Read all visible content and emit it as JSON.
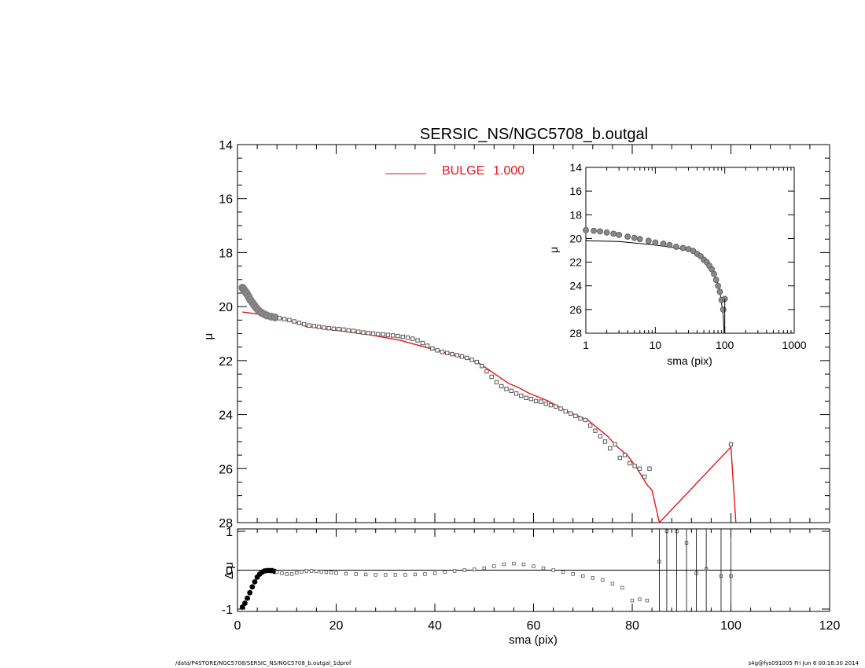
{
  "chart_data": [
    {
      "type": "scatter",
      "title": "SERSIC_NS/NGC5708_b.outgal",
      "xlabel": "",
      "ylabel": "μ",
      "xlim": [
        0,
        120
      ],
      "ylim": [
        28,
        14
      ],
      "yticks": [
        "14",
        "16",
        "18",
        "20",
        "22",
        "24",
        "26",
        "28"
      ],
      "legend": {
        "label": "BULGE",
        "value": "1.000",
        "color": "#e8141a",
        "placement": "top-center"
      },
      "data_points": {
        "x": [
          1.0,
          1.2,
          1.4,
          1.6,
          1.8,
          2.0,
          2.3,
          2.6,
          3.0,
          3.4,
          3.8,
          4.3,
          4.8,
          5.4,
          6.0,
          6.8,
          7.6,
          8.5,
          9.5,
          10.5,
          11.5,
          12.5,
          13.5,
          14.5,
          15.5,
          16.5,
          17.5,
          18.5,
          19.5,
          20.5,
          21.5,
          22.5,
          23.5,
          24.5,
          25.5,
          26.5,
          27.5,
          28.5,
          29.5,
          30.5,
          31.5,
          32.5,
          33.5,
          34.5,
          35.5,
          36.5,
          37.5,
          38.5,
          39.5,
          40.5,
          41.5,
          42.5,
          43.5,
          44.5,
          45.5,
          46.5,
          47.5,
          48.5,
          49.5,
          50.5,
          51.5,
          52.5,
          53.5,
          54.5,
          55.5,
          56.5,
          57.5,
          58.5,
          59.5,
          60.5,
          61.5,
          62.5,
          63.5,
          64.5,
          65.5,
          66.5,
          67.5,
          68.5,
          69.5,
          70.5,
          71.5,
          72.5,
          73.5,
          74.5,
          75.5,
          76.5,
          77.5,
          78.5,
          79.5,
          80.5,
          81.5,
          82.5,
          83.5,
          100.0
        ],
        "y": [
          19.3,
          19.35,
          19.4,
          19.45,
          19.5,
          19.55,
          19.65,
          19.75,
          19.85,
          19.95,
          20.05,
          20.15,
          20.22,
          20.28,
          20.33,
          20.37,
          20.4,
          20.43,
          20.46,
          20.5,
          20.55,
          20.6,
          20.65,
          20.7,
          20.72,
          20.75,
          20.78,
          20.8,
          20.82,
          20.83,
          20.85,
          20.88,
          20.9,
          20.93,
          20.96,
          20.98,
          21.0,
          21.02,
          21.03,
          21.05,
          21.07,
          21.09,
          21.12,
          21.15,
          21.19,
          21.25,
          21.35,
          21.45,
          21.55,
          21.62,
          21.68,
          21.72,
          21.76,
          21.8,
          21.85,
          21.9,
          21.97,
          22.05,
          22.2,
          22.4,
          22.6,
          22.8,
          22.95,
          23.05,
          23.12,
          23.22,
          23.3,
          23.38,
          23.42,
          23.5,
          23.52,
          23.6,
          23.65,
          23.7,
          23.78,
          23.88,
          23.96,
          24.05,
          24.15,
          24.2,
          24.4,
          24.6,
          24.8,
          25.0,
          25.25,
          25.1,
          25.6,
          25.5,
          25.8,
          25.9,
          26.0,
          26.3,
          26.0,
          25.1
        ]
      },
      "model_line": {
        "name": "BULGE",
        "x": [
          1,
          3,
          5,
          7,
          9,
          11,
          13,
          14,
          15,
          17,
          19,
          21,
          23,
          25,
          27,
          29,
          31,
          33,
          35,
          37,
          39,
          41,
          43,
          45,
          47,
          49,
          51,
          53,
          55,
          57,
          59,
          61,
          63,
          65,
          67,
          69,
          71,
          73,
          75,
          77,
          79,
          81,
          83,
          84,
          85.5,
          100,
          101
        ],
        "y": [
          20.2,
          20.25,
          20.3,
          20.4,
          20.45,
          20.55,
          20.65,
          20.75,
          20.75,
          20.8,
          20.85,
          20.9,
          20.95,
          21.0,
          21.05,
          21.12,
          21.18,
          21.25,
          21.35,
          21.45,
          21.55,
          21.65,
          21.75,
          21.85,
          21.95,
          22.1,
          22.35,
          22.6,
          22.85,
          23.0,
          23.2,
          23.35,
          23.5,
          23.7,
          23.9,
          24.05,
          24.2,
          24.5,
          24.8,
          25.2,
          25.5,
          26.0,
          26.6,
          26.8,
          28.0,
          25.2,
          28.0
        ]
      }
    },
    {
      "type": "scatter",
      "title": "",
      "xlabel": "sma (pix)",
      "ylabel": "μ",
      "x_scale": "log",
      "xlim": [
        1,
        1000
      ],
      "ylim": [
        28,
        14
      ],
      "xticks": [
        "1",
        "10",
        "100",
        "1000"
      ],
      "yticks": [
        "14",
        "16",
        "18",
        "20",
        "22",
        "24",
        "26",
        "28"
      ],
      "data_points": {
        "x": [
          1.0,
          1.3,
          1.6,
          2.0,
          2.5,
          3.0,
          4.0,
          5.0,
          6.0,
          8.0,
          10,
          13,
          16,
          20,
          25,
          30,
          35,
          40,
          45,
          50,
          55,
          60,
          65,
          70,
          75,
          80,
          85,
          90,
          95,
          100
        ],
        "y": [
          19.3,
          19.35,
          19.4,
          19.5,
          19.6,
          19.7,
          19.85,
          19.95,
          20.05,
          20.2,
          20.35,
          20.45,
          20.55,
          20.7,
          20.8,
          20.9,
          21.05,
          21.3,
          21.5,
          21.8,
          22.0,
          22.3,
          22.6,
          23.0,
          23.5,
          24.0,
          24.5,
          25.2,
          26.0,
          25.1
        ]
      },
      "model_line": {
        "x": [
          1,
          3,
          10,
          20,
          30,
          40,
          50,
          60,
          70,
          80,
          85,
          90,
          95,
          98
        ],
        "y": [
          20.2,
          20.25,
          20.55,
          20.8,
          21.0,
          21.3,
          21.7,
          22.2,
          22.9,
          23.8,
          24.5,
          25.5,
          26.5,
          28.0
        ]
      }
    },
    {
      "type": "scatter",
      "title": "",
      "xlabel": "sma (pix)",
      "ylabel": "Δ μ",
      "xlim": [
        0,
        120
      ],
      "ylim": [
        -1,
        1
      ],
      "xticks": [
        "0",
        "20",
        "40",
        "60",
        "80",
        "100",
        "120"
      ],
      "yticks": [
        "-1",
        "0",
        "1"
      ],
      "data_points": {
        "x": [
          1.0,
          1.5,
          2.0,
          2.5,
          3.0,
          3.5,
          4.0,
          4.5,
          5.0,
          5.5,
          6.0,
          6.5,
          7.0,
          7.5,
          8.0,
          9,
          10,
          11,
          12,
          13,
          14,
          15,
          16,
          17,
          18,
          19,
          20,
          22,
          24,
          26,
          28,
          30,
          32,
          34,
          36,
          38,
          40,
          42,
          44,
          46,
          48,
          50,
          52,
          54,
          56,
          58,
          60,
          62,
          64,
          66,
          68,
          70,
          72,
          74,
          76,
          78,
          80,
          81.5,
          83,
          85.5,
          87,
          89,
          91,
          93,
          95,
          98,
          100
        ],
        "y": [
          -0.95,
          -0.85,
          -0.72,
          -0.58,
          -0.43,
          -0.3,
          -0.18,
          -0.1,
          -0.05,
          -0.02,
          -0.01,
          -0.01,
          -0.01,
          -0.03,
          -0.05,
          -0.08,
          -0.1,
          -0.1,
          -0.07,
          -0.04,
          -0.02,
          -0.02,
          -0.03,
          -0.04,
          -0.05,
          -0.06,
          -0.07,
          -0.09,
          -0.1,
          -0.11,
          -0.12,
          -0.12,
          -0.12,
          -0.12,
          -0.11,
          -0.1,
          -0.08,
          -0.05,
          -0.02,
          0.0,
          0.02,
          0.05,
          0.1,
          0.15,
          0.17,
          0.15,
          0.1,
          0.05,
          0.0,
          -0.05,
          -0.1,
          -0.15,
          -0.2,
          -0.25,
          -0.35,
          -0.45,
          -0.78,
          -0.75,
          -0.78,
          0.22,
          1.0,
          1.0,
          0.7,
          -0.08,
          0.03,
          -0.15,
          -0.15
        ]
      }
    }
  ],
  "footer": {
    "left": "/data/P4STORE/NGC5708/SERSIC_NS/NGC5708_b.outgal_1dprof",
    "right": "s4g@fys091005  Fri Jun  6 00:16:30 2014"
  }
}
